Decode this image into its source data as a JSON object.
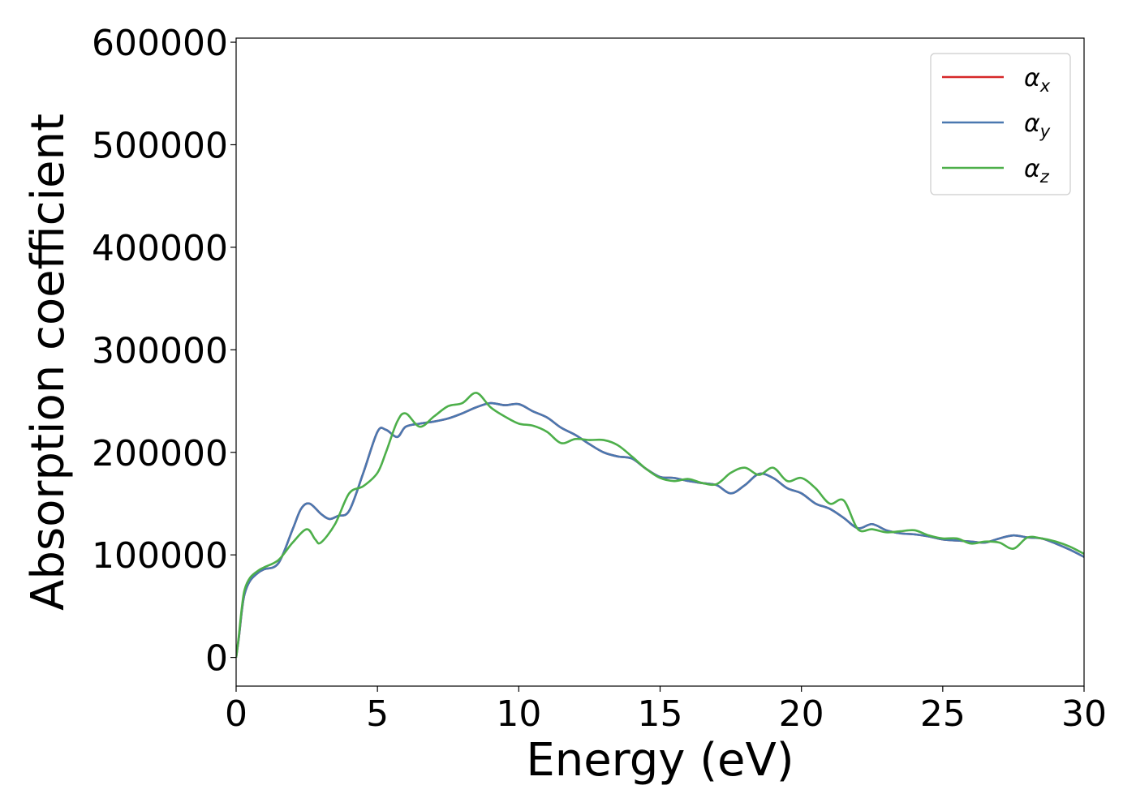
{
  "chart_data": {
    "type": "line",
    "xlabel": "Energy (eV)",
    "ylabel": "Absorption coefficient",
    "xlim": [
      0,
      30
    ],
    "ylim": [
      -28000,
      604000
    ],
    "xticks": [
      0,
      5,
      10,
      15,
      20,
      25,
      30
    ],
    "yticks": [
      0,
      100000,
      200000,
      300000,
      400000,
      500000,
      600000
    ],
    "grid": false,
    "legend_position": "top-right",
    "series": [
      {
        "name": "α",
        "sub": "x",
        "color": "#d62728",
        "x": [
          0,
          0.1,
          0.2,
          0.3,
          0.5,
          0.8,
          1.0,
          1.5,
          2.0,
          2.3,
          2.6,
          3.0,
          3.3,
          3.6,
          4.0,
          4.5,
          5.0,
          5.3,
          5.7,
          6.0,
          6.5,
          7.0,
          7.5,
          8.0,
          8.5,
          9.0,
          9.5,
          10.0,
          10.5,
          11.0,
          11.5,
          12.0,
          12.5,
          13.0,
          13.5,
          14.0,
          14.5,
          15.0,
          15.5,
          16.0,
          16.5,
          17.0,
          17.5,
          18.0,
          18.5,
          19.0,
          19.5,
          20.0,
          20.5,
          21.0,
          21.5,
          22.0,
          22.5,
          23.0,
          23.5,
          24.0,
          24.5,
          25.0,
          25.5,
          26.0,
          26.5,
          27.0,
          27.5,
          28.0,
          28.5,
          29.0,
          29.5,
          30.0
        ],
        "y": [
          0,
          20000,
          45000,
          62000,
          75000,
          83000,
          86000,
          92000,
          125000,
          145000,
          150000,
          140000,
          135000,
          138000,
          143000,
          180000,
          220000,
          222000,
          215000,
          225000,
          228000,
          230000,
          233000,
          238000,
          244000,
          248000,
          246000,
          247000,
          240000,
          234000,
          224000,
          217000,
          208000,
          200000,
          196000,
          194000,
          184000,
          176000,
          175000,
          172000,
          170000,
          168000,
          160000,
          168000,
          179000,
          175000,
          165000,
          160000,
          150000,
          145000,
          136000,
          126000,
          130000,
          124000,
          121000,
          120000,
          118000,
          115000,
          114000,
          113000,
          112000,
          116000,
          119000,
          117000,
          116000,
          111000,
          105000,
          98000
        ]
      },
      {
        "name": "α",
        "sub": "y",
        "color": "#4a78b0",
        "x": [
          0,
          0.1,
          0.2,
          0.3,
          0.5,
          0.8,
          1.0,
          1.5,
          2.0,
          2.3,
          2.6,
          3.0,
          3.3,
          3.6,
          4.0,
          4.5,
          5.0,
          5.3,
          5.7,
          6.0,
          6.5,
          7.0,
          7.5,
          8.0,
          8.5,
          9.0,
          9.5,
          10.0,
          10.5,
          11.0,
          11.5,
          12.0,
          12.5,
          13.0,
          13.5,
          14.0,
          14.5,
          15.0,
          15.5,
          16.0,
          16.5,
          17.0,
          17.5,
          18.0,
          18.5,
          19.0,
          19.5,
          20.0,
          20.5,
          21.0,
          21.5,
          22.0,
          22.5,
          23.0,
          23.5,
          24.0,
          24.5,
          25.0,
          25.5,
          26.0,
          26.5,
          27.0,
          27.5,
          28.0,
          28.5,
          29.0,
          29.5,
          30.0
        ],
        "y": [
          0,
          20000,
          45000,
          62000,
          75000,
          83000,
          86000,
          92000,
          125000,
          145000,
          150000,
          140000,
          135000,
          138000,
          143000,
          180000,
          220000,
          222000,
          215000,
          225000,
          228000,
          230000,
          233000,
          238000,
          244000,
          248000,
          246000,
          247000,
          240000,
          234000,
          224000,
          217000,
          208000,
          200000,
          196000,
          194000,
          184000,
          176000,
          175000,
          172000,
          170000,
          168000,
          160000,
          168000,
          179000,
          175000,
          165000,
          160000,
          150000,
          145000,
          136000,
          126000,
          130000,
          124000,
          121000,
          120000,
          118000,
          115000,
          114000,
          113000,
          112000,
          116000,
          119000,
          117000,
          116000,
          111000,
          105000,
          98000
        ]
      },
      {
        "name": "α",
        "sub": "z",
        "color": "#4daf4a",
        "x": [
          0,
          0.1,
          0.2,
          0.3,
          0.5,
          0.8,
          1.0,
          1.5,
          2.0,
          2.5,
          2.8,
          3.0,
          3.5,
          4.0,
          4.5,
          5.0,
          5.3,
          5.7,
          6.0,
          6.5,
          7.0,
          7.5,
          8.0,
          8.5,
          9.0,
          9.5,
          10.0,
          10.5,
          11.0,
          11.5,
          12.0,
          12.5,
          13.0,
          13.5,
          14.0,
          14.5,
          15.0,
          15.5,
          16.0,
          16.5,
          17.0,
          17.5,
          18.0,
          18.5,
          19.0,
          19.5,
          20.0,
          20.5,
          21.0,
          21.5,
          22.0,
          22.5,
          23.0,
          23.5,
          24.0,
          24.5,
          25.0,
          25.5,
          26.0,
          26.5,
          27.0,
          27.5,
          28.0,
          28.5,
          29.0,
          29.5,
          30.0
        ],
        "y": [
          0,
          22000,
          48000,
          66000,
          78000,
          85000,
          88000,
          95000,
          112000,
          125000,
          115000,
          112000,
          130000,
          160000,
          167000,
          180000,
          200000,
          230000,
          238000,
          225000,
          235000,
          245000,
          248000,
          258000,
          244000,
          235000,
          228000,
          226000,
          220000,
          209000,
          213000,
          212000,
          212000,
          207000,
          196000,
          184000,
          175000,
          172000,
          174000,
          170000,
          169000,
          180000,
          185000,
          178000,
          185000,
          172000,
          175000,
          165000,
          150000,
          153000,
          125000,
          125000,
          122000,
          123000,
          124000,
          119000,
          116000,
          116000,
          111000,
          113000,
          112000,
          106000,
          117000,
          116000,
          113000,
          108000,
          101000
        ]
      }
    ]
  }
}
